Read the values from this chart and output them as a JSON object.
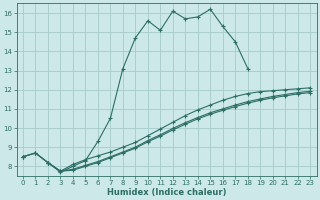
{
  "xlabel": "Humidex (Indice chaleur)",
  "bg_color": "#cce8e8",
  "grid_color": "#aacece",
  "line_color": "#2d6e65",
  "xlim": [
    -0.5,
    23.5
  ],
  "ylim": [
    7.5,
    16.5
  ],
  "xticks": [
    0,
    1,
    2,
    3,
    4,
    5,
    6,
    7,
    8,
    9,
    10,
    11,
    12,
    13,
    14,
    15,
    16,
    17,
    18,
    19,
    20,
    21,
    22,
    23
  ],
  "yticks": [
    8,
    9,
    10,
    11,
    12,
    13,
    14,
    15,
    16
  ],
  "curve1_x": [
    0,
    1,
    2,
    3,
    4,
    5,
    6,
    7,
    8,
    9,
    10,
    11,
    12,
    13,
    14,
    15,
    16,
    17,
    18
  ],
  "curve1_y": [
    8.5,
    8.7,
    8.2,
    7.7,
    8.0,
    8.3,
    9.3,
    10.5,
    13.1,
    14.7,
    15.6,
    15.1,
    16.1,
    15.7,
    15.8,
    16.2,
    15.3,
    14.5,
    13.1
  ],
  "curve2_x": [
    2,
    3,
    4,
    5,
    6,
    7,
    8,
    9,
    10,
    11,
    12,
    13,
    14,
    15,
    16,
    17,
    18,
    19,
    20,
    21,
    22,
    23
  ],
  "curve2_y": [
    8.2,
    7.75,
    8.1,
    8.35,
    8.55,
    8.75,
    9.0,
    9.25,
    9.6,
    9.95,
    10.3,
    10.65,
    10.95,
    11.2,
    11.45,
    11.65,
    11.8,
    11.9,
    11.95,
    12.0,
    12.05,
    12.1
  ],
  "curve3_x": [
    0,
    1,
    2,
    3,
    4,
    5,
    6,
    7,
    8,
    9,
    10,
    11,
    12,
    13,
    14,
    15,
    16,
    17,
    18,
    19,
    20,
    21,
    22,
    23
  ],
  "curve3_y": [
    8.5,
    8.7,
    8.2,
    7.75,
    7.85,
    8.05,
    8.25,
    8.5,
    8.75,
    9.0,
    9.35,
    9.65,
    9.98,
    10.28,
    10.55,
    10.8,
    11.0,
    11.2,
    11.38,
    11.52,
    11.65,
    11.75,
    11.85,
    11.92
  ],
  "curve4_x": [
    0,
    1,
    2,
    3,
    4,
    5,
    6,
    7,
    8,
    9,
    10,
    11,
    12,
    13,
    14,
    15,
    16,
    17,
    18,
    19,
    20,
    21,
    22,
    23
  ],
  "curve4_y": [
    8.5,
    8.7,
    8.2,
    7.75,
    7.8,
    8.0,
    8.2,
    8.45,
    8.7,
    8.95,
    9.28,
    9.58,
    9.9,
    10.2,
    10.48,
    10.72,
    10.93,
    11.12,
    11.3,
    11.45,
    11.58,
    11.68,
    11.78,
    11.85
  ]
}
